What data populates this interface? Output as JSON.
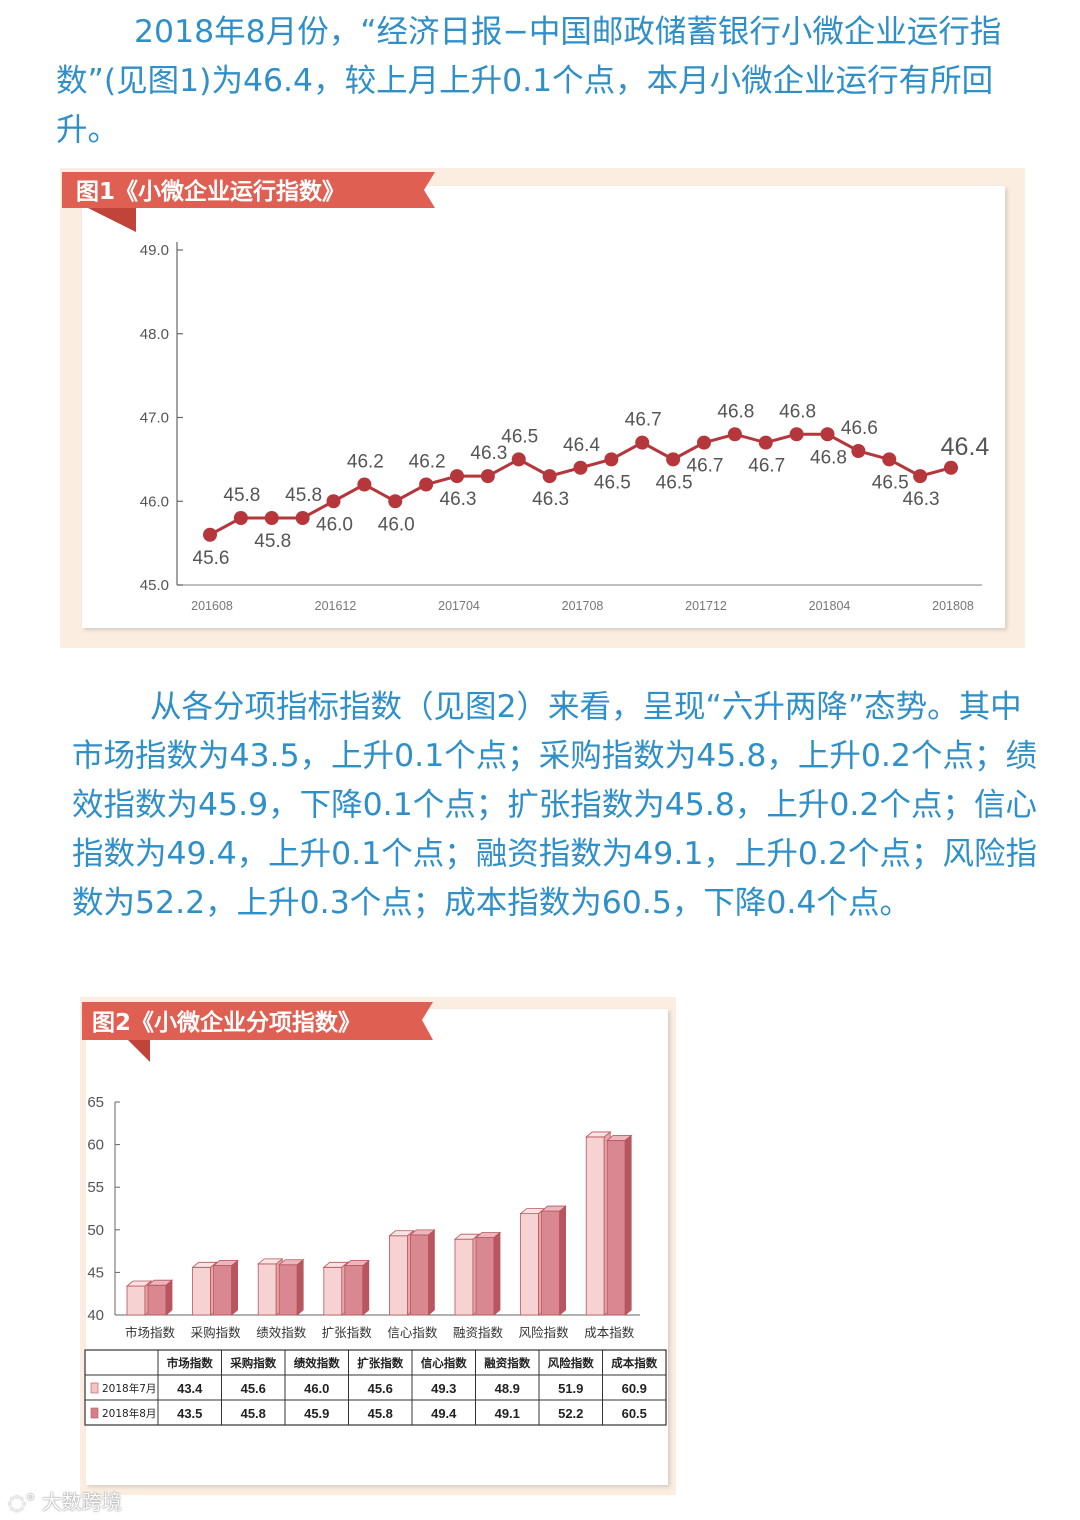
{
  "paragraph1": "2018年8月份，“经济日报−中国邮政储蓄银行小微企业运行指数”(见图1)为46.4，较上月上升0.1个点，本月小微企业运行有所回升。",
  "paragraph2": "从各分项指标指数（见图2）来看，呈现“六升两降”态势。其中市场指数为43.5，上升0.1个点；采购指数为45.8，上升0.2个点；绩效指数为45.9，下降0.1个点；扩张指数为45.8，上升0.2个点；信心指数为49.4，上升0.1个点；融资指数为49.1，上升0.2个点；风险指数为52.2，上升0.3个点；成本指数为60.5，下降0.4个点。",
  "watermark": "大数跨境",
  "colors": {
    "text": "#2f8fc9",
    "banner": "#e05f53",
    "line": "#b5373c",
    "highlight": "#e0201c",
    "bar_jul": "#f2c4c4",
    "bar_aug": "#d4808a"
  },
  "chart_data": [
    {
      "type": "line",
      "title": "图1《小微企业运行指数》",
      "x": [
        "201608",
        "201609",
        "201610",
        "201611",
        "201612",
        "201701",
        "201702",
        "201703",
        "201704",
        "201705",
        "201706",
        "201707",
        "201708",
        "201709",
        "201710",
        "201711",
        "201712",
        "201801",
        "201802",
        "201803",
        "201804",
        "201805",
        "201806",
        "201807",
        "201808"
      ],
      "values": [
        45.6,
        45.8,
        45.8,
        45.8,
        46.0,
        46.2,
        46.0,
        46.2,
        46.3,
        46.3,
        46.5,
        46.3,
        46.4,
        46.5,
        46.7,
        46.5,
        46.7,
        46.8,
        46.7,
        46.8,
        46.8,
        46.6,
        46.5,
        46.3,
        46.4
      ],
      "labels": [
        "45.6",
        "45.8",
        "45.8",
        "45.8",
        "46.0",
        "46.2",
        "46.0",
        "46.2",
        "46.3",
        "46.3",
        "46.5",
        "46.3",
        "46.4",
        "46.5",
        "46.7",
        "46.5",
        "46.7",
        "46.8",
        "46.7",
        "46.8",
        "46.8",
        "46.6",
        "46.5",
        "46.3",
        "46.4"
      ],
      "label_pos": [
        "below",
        "above",
        "below",
        "above",
        "below",
        "above",
        "below",
        "above",
        "below",
        "above",
        "above",
        "below",
        "above",
        "below",
        "above",
        "below",
        "below",
        "above",
        "below",
        "above",
        "below",
        "above",
        "below",
        "below",
        "above"
      ],
      "xticks": [
        "201608",
        "201612",
        "201704",
        "201708",
        "201712",
        "201804",
        "201808"
      ],
      "ylim": [
        45.0,
        49.0
      ],
      "yticks": [
        "45.0",
        "46.0",
        "47.0",
        "48.0",
        "49.0"
      ],
      "highlight_last": true
    },
    {
      "type": "bar",
      "title": "图2《小微企业分项指数》",
      "categories": [
        "市场指数",
        "采购指数",
        "绩效指数",
        "扩张指数",
        "信心指数",
        "融资指数",
        "风险指数",
        "成本指数"
      ],
      "series": [
        {
          "name": "2018年7月",
          "values": [
            43.4,
            45.6,
            46.0,
            45.6,
            49.3,
            48.9,
            51.9,
            60.9
          ],
          "labels": [
            "43.4",
            "45.6",
            "46.0",
            "45.6",
            "49.3",
            "48.9",
            "51.9",
            "60.9"
          ]
        },
        {
          "name": "2018年8月",
          "values": [
            43.5,
            45.8,
            45.9,
            45.8,
            49.4,
            49.1,
            52.2,
            60.5
          ],
          "labels": [
            "43.5",
            "45.8",
            "45.9",
            "45.8",
            "49.4",
            "49.1",
            "52.2",
            "60.5"
          ]
        }
      ],
      "ylim": [
        40,
        65
      ],
      "yticks": [
        "40",
        "45",
        "50",
        "55",
        "60",
        "65"
      ]
    }
  ]
}
